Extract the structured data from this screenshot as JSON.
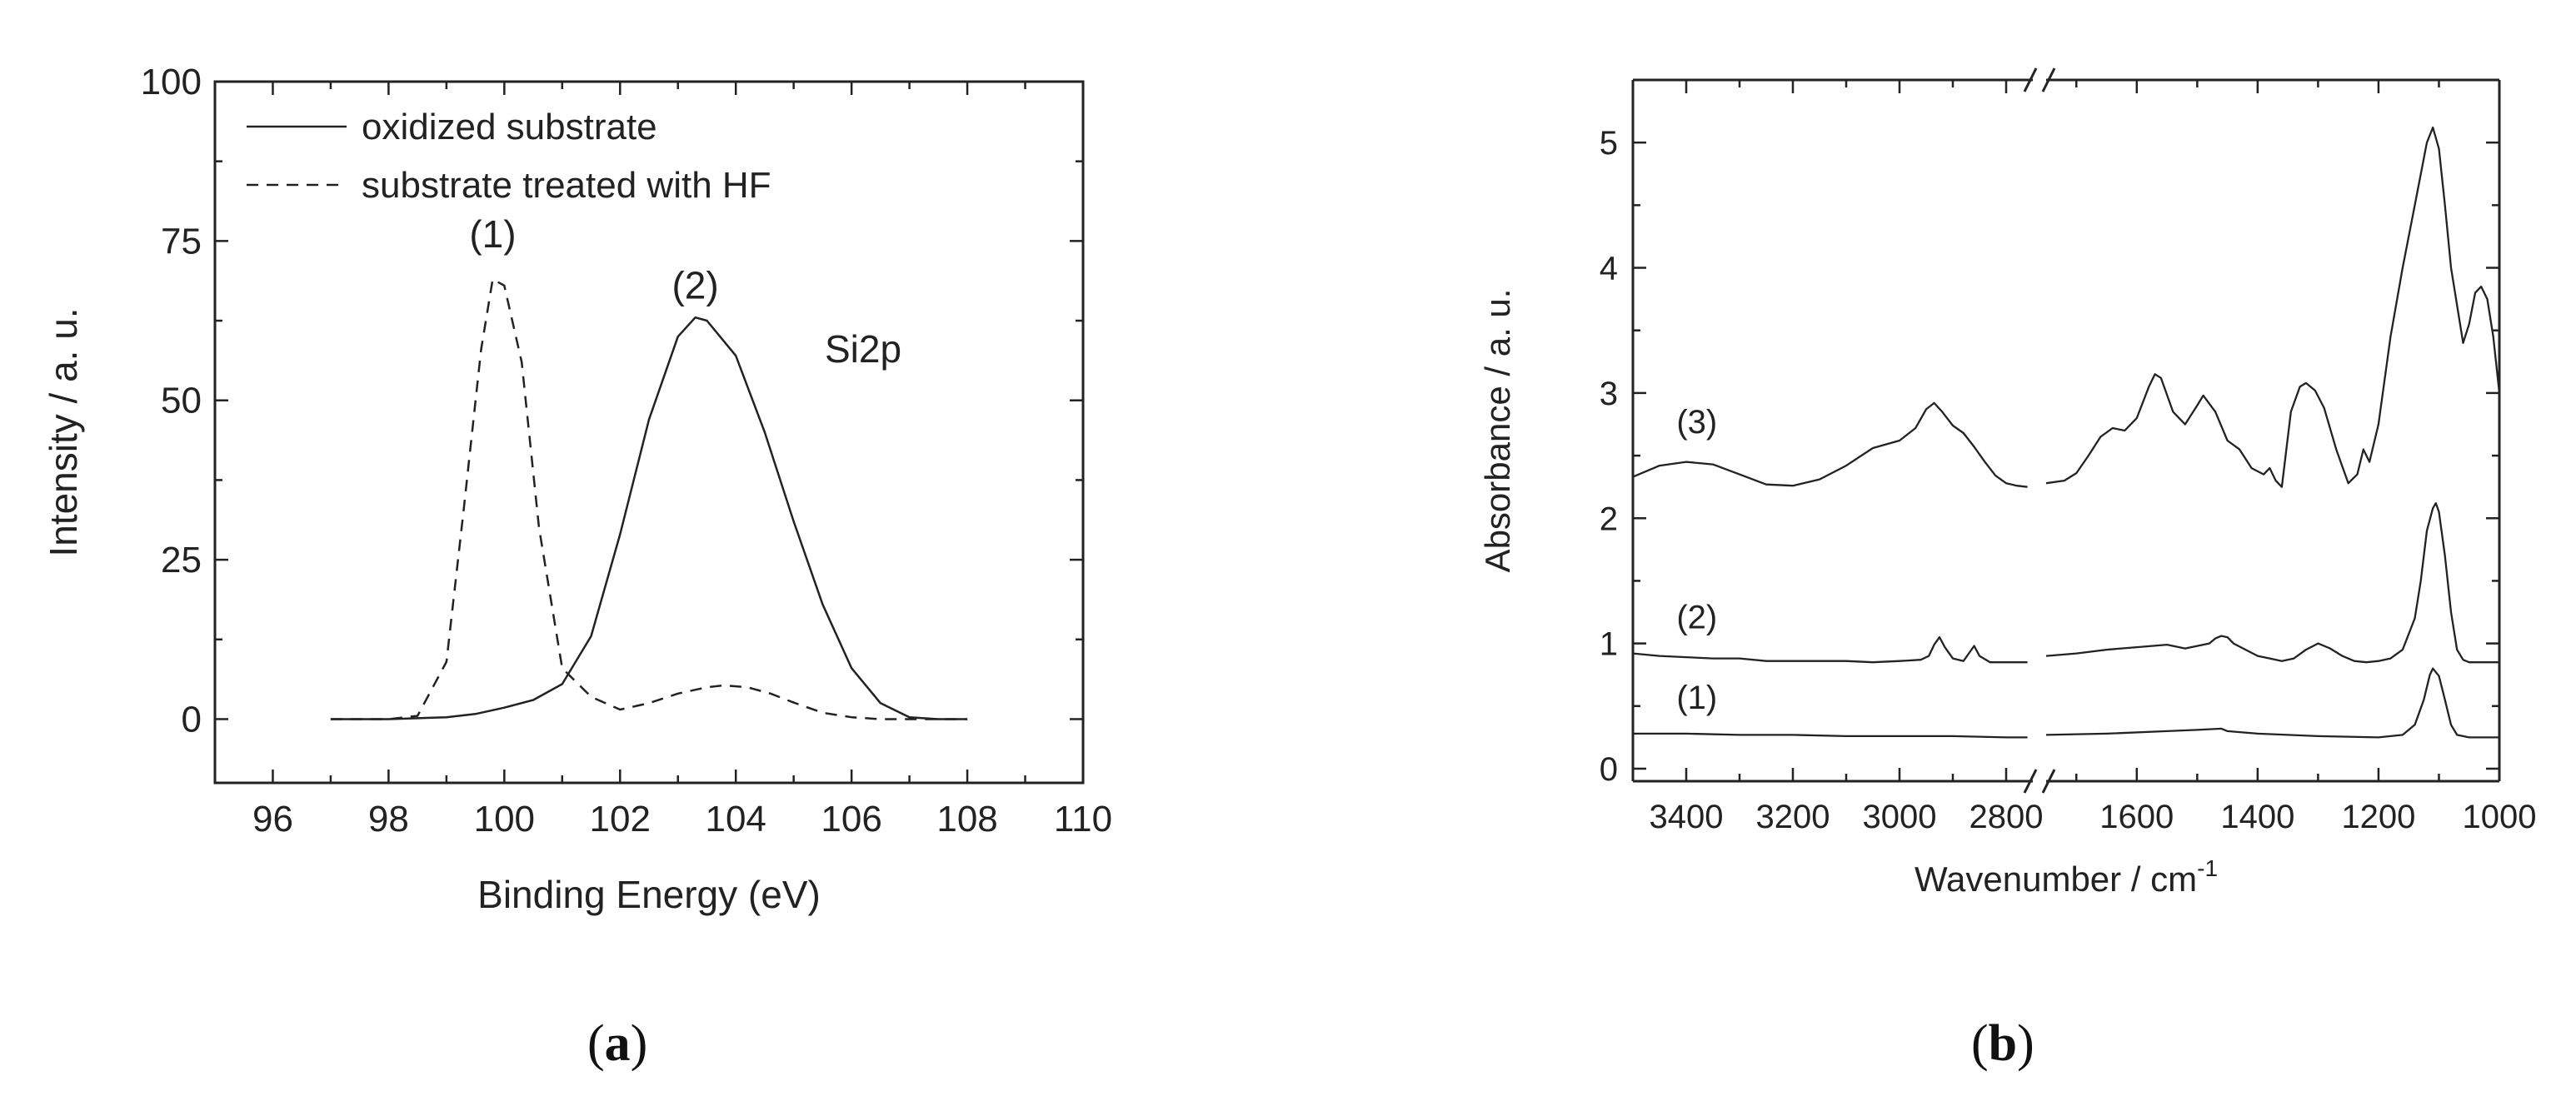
{
  "chart_data": [
    {
      "panel": "a",
      "type": "line",
      "title": "",
      "xlabel": "Binding Energy (eV)",
      "ylabel": "Intensity / a. u.",
      "xlim": [
        95,
        110
      ],
      "ylim": [
        -10,
        100
      ],
      "xticks": [
        96,
        98,
        100,
        102,
        104,
        106,
        108,
        110
      ],
      "yticks": [
        0,
        25,
        50,
        75,
        100
      ],
      "legend": [
        "oxidized substrate",
        "substrate treated with HF"
      ],
      "legend_position": "top-left",
      "annotations": [
        {
          "text": "(1)",
          "x": 99.8,
          "y": 74
        },
        {
          "text": "(2)",
          "x": 103.3,
          "y": 66
        },
        {
          "text": "Si2p",
          "x": 106.2,
          "y": 56
        }
      ],
      "series": [
        {
          "name": "oxidized substrate",
          "style": "solid",
          "x": [
            97,
            98,
            99,
            99.5,
            100,
            100.5,
            101,
            101.5,
            102,
            102.5,
            103,
            103.3,
            103.5,
            104,
            104.5,
            105,
            105.5,
            106,
            106.5,
            107,
            107.5,
            108
          ],
          "y": [
            0,
            0,
            0.3,
            0.8,
            1.8,
            3,
            5.5,
            13,
            29,
            47,
            60,
            63,
            62.5,
            57,
            45,
            31,
            18,
            8,
            2.5,
            0.3,
            0,
            0
          ]
        },
        {
          "name": "substrate treated with HF",
          "style": "dashed",
          "x": [
            97,
            98,
            98.5,
            99,
            99.3,
            99.6,
            99.8,
            100,
            100.3,
            100.6,
            101,
            101.5,
            102,
            102.5,
            103,
            103.5,
            103.8,
            104.2,
            104.6,
            105,
            105.5,
            106,
            106.5,
            107,
            108
          ],
          "y": [
            0,
            0,
            0.5,
            9,
            33,
            58,
            69,
            68,
            56,
            30,
            8,
            3.5,
            1.5,
            2.5,
            4,
            5,
            5.3,
            5,
            4,
            2.6,
            1,
            0.3,
            0,
            0,
            0
          ]
        }
      ]
    },
    {
      "panel": "b",
      "type": "line",
      "title": "",
      "xlabel": "Wavenumber / cm",
      "xlabel_superscript": "-1",
      "ylabel": "Absorbance / a. u.",
      "x_break": [
        2750,
        1750
      ],
      "xlim": [
        3500,
        1000
      ],
      "ylim": [
        -0.1,
        5.5
      ],
      "xticks": [
        3400,
        3200,
        3000,
        2800,
        1600,
        1400,
        1200,
        1000
      ],
      "yticks": [
        0,
        1,
        2,
        3,
        4,
        5
      ],
      "series": [
        {
          "name": "(3)",
          "segments": [
            {
              "x": [
                3500,
                3450,
                3400,
                3350,
                3300,
                3250,
                3200,
                3150,
                3100,
                3050,
                3000,
                2970,
                2950,
                2935,
                2920,
                2900,
                2880,
                2860,
                2840,
                2820,
                2800,
                2780,
                2760
              ],
              "y": [
                2.33,
                2.42,
                2.45,
                2.43,
                2.35,
                2.27,
                2.26,
                2.31,
                2.42,
                2.56,
                2.62,
                2.72,
                2.87,
                2.92,
                2.85,
                2.74,
                2.68,
                2.57,
                2.45,
                2.34,
                2.28,
                2.26,
                2.25
              ]
            },
            {
              "x": [
                1750,
                1720,
                1700,
                1680,
                1660,
                1640,
                1620,
                1600,
                1580,
                1570,
                1560,
                1540,
                1520,
                1500,
                1490,
                1470,
                1450,
                1430,
                1410,
                1390,
                1380,
                1370,
                1360,
                1345,
                1330,
                1320,
                1305,
                1290,
                1270,
                1250,
                1235,
                1225,
                1215,
                1200,
                1180,
                1160,
                1140,
                1120,
                1110,
                1100,
                1090,
                1080,
                1060,
                1050,
                1040,
                1030,
                1020,
                1010,
                1000
              ],
              "y": [
                2.28,
                2.3,
                2.36,
                2.5,
                2.65,
                2.72,
                2.7,
                2.8,
                3.05,
                3.15,
                3.12,
                2.85,
                2.75,
                2.9,
                2.98,
                2.85,
                2.62,
                2.55,
                2.4,
                2.35,
                2.4,
                2.3,
                2.25,
                2.85,
                3.05,
                3.08,
                3.02,
                2.88,
                2.55,
                2.28,
                2.35,
                2.55,
                2.45,
                2.75,
                3.45,
                4.0,
                4.5,
                5.0,
                5.12,
                4.95,
                4.5,
                4.0,
                3.4,
                3.55,
                3.8,
                3.85,
                3.75,
                3.45,
                3.0
              ]
            }
          ]
        },
        {
          "name": "(2)",
          "segments": [
            {
              "x": [
                3500,
                3450,
                3400,
                3350,
                3300,
                3250,
                3200,
                3150,
                3100,
                3050,
                3000,
                2960,
                2945,
                2935,
                2925,
                2915,
                2900,
                2880,
                2870,
                2860,
                2850,
                2830,
                2800,
                2760
              ],
              "y": [
                0.92,
                0.9,
                0.89,
                0.88,
                0.88,
                0.86,
                0.86,
                0.86,
                0.86,
                0.85,
                0.86,
                0.87,
                0.9,
                0.99,
                1.05,
                0.97,
                0.88,
                0.86,
                0.92,
                0.98,
                0.9,
                0.85,
                0.85,
                0.85
              ]
            },
            {
              "x": [
                1750,
                1700,
                1650,
                1600,
                1550,
                1520,
                1500,
                1480,
                1470,
                1460,
                1450,
                1440,
                1420,
                1400,
                1380,
                1360,
                1340,
                1320,
                1300,
                1280,
                1260,
                1240,
                1220,
                1200,
                1180,
                1160,
                1140,
                1130,
                1120,
                1110,
                1105,
                1100,
                1090,
                1080,
                1070,
                1060,
                1050,
                1030,
                1000
              ],
              "y": [
                0.9,
                0.92,
                0.95,
                0.97,
                0.99,
                0.96,
                0.98,
                1.0,
                1.04,
                1.06,
                1.05,
                1.0,
                0.95,
                0.9,
                0.88,
                0.86,
                0.88,
                0.95,
                1.0,
                0.96,
                0.9,
                0.86,
                0.85,
                0.86,
                0.88,
                0.95,
                1.2,
                1.5,
                1.9,
                2.08,
                2.12,
                2.05,
                1.7,
                1.25,
                0.95,
                0.87,
                0.85,
                0.85,
                0.85
              ]
            }
          ]
        },
        {
          "name": "(1)",
          "segments": [
            {
              "x": [
                3500,
                3400,
                3300,
                3200,
                3100,
                3000,
                2900,
                2800,
                2760
              ],
              "y": [
                0.28,
                0.28,
                0.27,
                0.27,
                0.26,
                0.26,
                0.26,
                0.25,
                0.25
              ]
            },
            {
              "x": [
                1750,
                1650,
                1550,
                1500,
                1460,
                1450,
                1400,
                1300,
                1200,
                1160,
                1140,
                1125,
                1115,
                1110,
                1100,
                1090,
                1080,
                1070,
                1050,
                1000
              ],
              "y": [
                0.27,
                0.28,
                0.3,
                0.31,
                0.32,
                0.3,
                0.28,
                0.26,
                0.25,
                0.27,
                0.35,
                0.55,
                0.75,
                0.8,
                0.74,
                0.55,
                0.35,
                0.27,
                0.25,
                0.25
              ]
            }
          ]
        }
      ]
    }
  ],
  "panel_labels": [
    "(a)",
    "(b)"
  ],
  "panel_letters": [
    "a",
    "b"
  ]
}
